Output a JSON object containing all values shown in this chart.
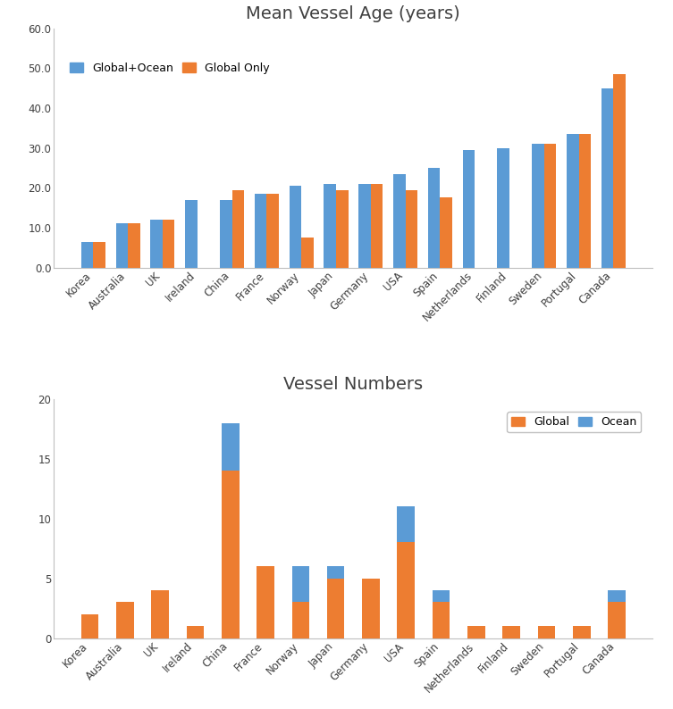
{
  "countries": [
    "Korea",
    "Australia",
    "UK",
    "Ireland",
    "China",
    "France",
    "Norway",
    "Japan",
    "Germany",
    "USA",
    "Spain",
    "Netherlands",
    "Finland",
    "Sweden",
    "Portugal",
    "Canada"
  ],
  "age_global_ocean": [
    6.5,
    11.0,
    12.0,
    17.0,
    17.0,
    18.5,
    20.5,
    21.0,
    21.0,
    23.5,
    25.0,
    29.5,
    30.0,
    31.0,
    33.5,
    45.0
  ],
  "age_global_only": [
    6.5,
    11.0,
    12.0,
    null,
    19.5,
    18.5,
    7.5,
    19.5,
    21.0,
    19.5,
    17.5,
    null,
    null,
    31.0,
    33.5,
    48.5
  ],
  "vessel_global": [
    2,
    3,
    4,
    1,
    14,
    6,
    3,
    5,
    5,
    8,
    3,
    1,
    1,
    1,
    1,
    3
  ],
  "vessel_ocean": [
    0,
    0,
    0,
    0,
    4,
    0,
    3,
    1,
    0,
    3,
    1,
    0,
    0,
    0,
    0,
    1
  ],
  "color_blue": "#5B9BD5",
  "color_orange": "#ED7D31",
  "title1": "Mean Vessel Age (years)",
  "title2": "Vessel Numbers",
  "legend1_label1": "Global+Ocean",
  "legend1_label2": "Global Only",
  "legend2_label1": "Global",
  "legend2_label2": "Ocean",
  "ylim1": [
    0,
    60
  ],
  "yticks1": [
    0.0,
    10.0,
    20.0,
    30.0,
    40.0,
    50.0,
    60.0
  ],
  "ylim2": [
    0,
    20
  ],
  "yticks2": [
    0,
    5,
    10,
    15,
    20
  ],
  "background_color": "#FFFFFF",
  "panel_bg": "#F2F2F2",
  "grid_color": "#FFFFFF",
  "border_color": "#BFBFBF"
}
